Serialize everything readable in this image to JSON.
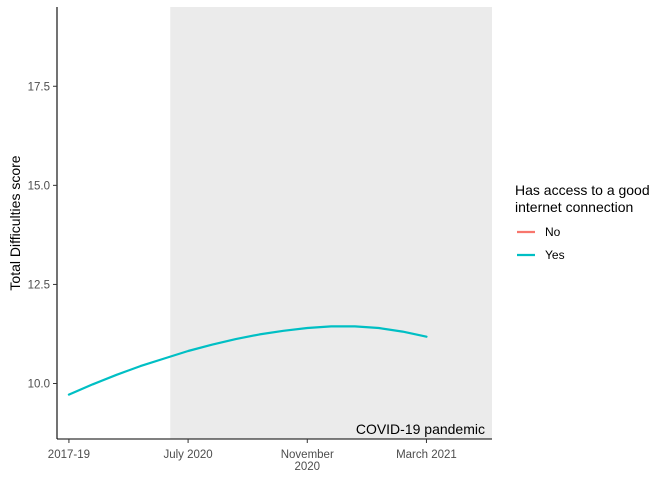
{
  "chart_data": {
    "type": "line",
    "ylabel": "Total Difficulties score",
    "xlabel": "",
    "x_categories": [
      "2017-19",
      "July 2020",
      "November 2020",
      "March 2021"
    ],
    "x_tick_lines": [
      [
        "2017-19"
      ],
      [
        "July 2020"
      ],
      [
        "November",
        "2020"
      ],
      [
        "March 2021"
      ]
    ],
    "xlim": [
      -0.1,
      3.55
    ],
    "ylim": [
      8.6,
      19.5
    ],
    "yticks": [
      10.0,
      12.5,
      15.0,
      17.5
    ],
    "ytick_labels": [
      "10.0",
      "12.5",
      "15.0",
      "17.5"
    ],
    "grid": false,
    "shaded_region": {
      "x_start": 0.85,
      "x_end": 3.55,
      "color": "#ebebeb",
      "label": "COVID-19 pandemic"
    },
    "series": [
      {
        "name": "No",
        "color": "#f8766d",
        "x": [],
        "y": []
      },
      {
        "name": "Yes",
        "color": "#00bfc4",
        "x": [
          0.0,
          0.2,
          0.4,
          0.6,
          0.8,
          1.0,
          1.2,
          1.4,
          1.6,
          1.8,
          2.0,
          2.2,
          2.4,
          2.6,
          2.8,
          3.0
        ],
        "y": [
          9.72,
          9.98,
          10.22,
          10.44,
          10.63,
          10.82,
          10.98,
          11.12,
          11.24,
          11.33,
          11.4,
          11.44,
          11.44,
          11.4,
          11.31,
          11.18
        ]
      }
    ],
    "legend": {
      "title_lines": [
        "Has access to a good",
        "internet connection"
      ],
      "position": "right"
    }
  }
}
